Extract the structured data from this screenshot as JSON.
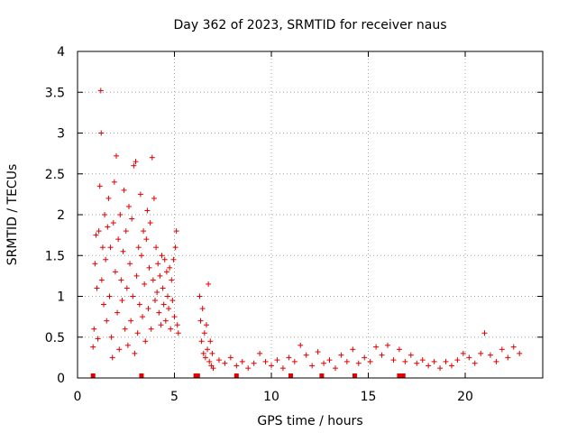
{
  "chart_data": {
    "type": "scatter",
    "title": "Day 362 of 2023, SRMTID for receiver naus",
    "xlabel": "GPS time / hours",
    "ylabel": "SRMTID / TECUs",
    "xlim": [
      0,
      24
    ],
    "ylim": [
      0,
      4
    ],
    "x_ticks": [
      0,
      5,
      10,
      15,
      20
    ],
    "y_ticks": [
      0,
      0.5,
      1,
      1.5,
      2,
      2.5,
      3,
      3.5,
      4
    ],
    "grid": true,
    "marker": "+",
    "color": "#e00000",
    "series": [
      {
        "name": "SRMTID",
        "points": [
          [
            0.8,
            0.38
          ],
          [
            0.85,
            0.6
          ],
          [
            0.9,
            1.4
          ],
          [
            0.95,
            1.75
          ],
          [
            1.0,
            1.1
          ],
          [
            1.05,
            0.48
          ],
          [
            1.1,
            1.8
          ],
          [
            1.15,
            2.35
          ],
          [
            1.2,
            3.52
          ],
          [
            1.22,
            3.0
          ],
          [
            1.25,
            1.2
          ],
          [
            1.3,
            1.6
          ],
          [
            1.35,
            0.9
          ],
          [
            1.4,
            2.0
          ],
          [
            1.45,
            1.45
          ],
          [
            1.5,
            0.7
          ],
          [
            1.55,
            1.85
          ],
          [
            1.6,
            2.2
          ],
          [
            1.65,
            1.0
          ],
          [
            1.7,
            1.6
          ],
          [
            1.75,
            0.5
          ],
          [
            1.8,
            0.25
          ],
          [
            1.85,
            1.9
          ],
          [
            1.9,
            2.4
          ],
          [
            1.95,
            1.3
          ],
          [
            2.0,
            2.72
          ],
          [
            2.05,
            0.8
          ],
          [
            2.1,
            1.7
          ],
          [
            2.15,
            0.35
          ],
          [
            2.2,
            2.0
          ],
          [
            2.25,
            1.2
          ],
          [
            2.3,
            0.95
          ],
          [
            2.35,
            1.55
          ],
          [
            2.4,
            2.3
          ],
          [
            2.45,
            0.6
          ],
          [
            2.5,
            1.8
          ],
          [
            2.55,
            1.1
          ],
          [
            2.6,
            0.4
          ],
          [
            2.65,
            2.1
          ],
          [
            2.7,
            1.4
          ],
          [
            2.75,
            0.7
          ],
          [
            2.8,
            1.95
          ],
          [
            2.85,
            1.0
          ],
          [
            2.9,
            2.6
          ],
          [
            2.95,
            0.3
          ],
          [
            3.0,
            2.65
          ],
          [
            3.05,
            1.25
          ],
          [
            3.1,
            0.55
          ],
          [
            3.15,
            1.6
          ],
          [
            3.2,
            0.9
          ],
          [
            3.25,
            2.25
          ],
          [
            3.3,
            1.5
          ],
          [
            3.35,
            0.75
          ],
          [
            3.4,
            1.8
          ],
          [
            3.45,
            1.15
          ],
          [
            3.5,
            0.45
          ],
          [
            3.55,
            1.7
          ],
          [
            3.6,
            2.05
          ],
          [
            3.65,
            0.85
          ],
          [
            3.7,
            1.35
          ],
          [
            3.75,
            1.9
          ],
          [
            3.8,
            0.6
          ],
          [
            3.85,
            2.7
          ],
          [
            3.9,
            1.2
          ],
          [
            3.95,
            2.2
          ],
          [
            4.0,
            0.95
          ],
          [
            4.05,
            1.6
          ],
          [
            4.1,
            1.05
          ],
          [
            4.15,
            1.4
          ],
          [
            4.2,
            0.8
          ],
          [
            4.25,
            1.25
          ],
          [
            4.3,
            0.65
          ],
          [
            4.35,
            1.5
          ],
          [
            4.4,
            1.1
          ],
          [
            4.45,
            0.9
          ],
          [
            4.5,
            1.45
          ],
          [
            4.55,
            0.7
          ],
          [
            4.6,
            1.3
          ],
          [
            4.65,
            1.0
          ],
          [
            4.7,
            0.85
          ],
          [
            4.75,
            1.35
          ],
          [
            4.8,
            0.6
          ],
          [
            4.85,
            1.2
          ],
          [
            4.9,
            0.95
          ],
          [
            4.95,
            1.45
          ],
          [
            5.0,
            0.75
          ],
          [
            5.05,
            1.6
          ],
          [
            5.1,
            1.8
          ],
          [
            5.15,
            0.65
          ],
          [
            5.2,
            0.55
          ],
          [
            6.3,
            1.0
          ],
          [
            6.35,
            0.7
          ],
          [
            6.4,
            0.45
          ],
          [
            6.45,
            0.85
          ],
          [
            6.5,
            0.3
          ],
          [
            6.55,
            0.55
          ],
          [
            6.6,
            0.25
          ],
          [
            6.65,
            0.65
          ],
          [
            6.7,
            0.35
          ],
          [
            6.75,
            1.15
          ],
          [
            6.8,
            0.2
          ],
          [
            6.85,
            0.45
          ],
          [
            6.9,
            0.15
          ],
          [
            6.95,
            0.3
          ],
          [
            7.0,
            0.12
          ],
          [
            7.3,
            0.22
          ],
          [
            7.6,
            0.18
          ],
          [
            7.9,
            0.25
          ],
          [
            8.2,
            0.15
          ],
          [
            8.5,
            0.2
          ],
          [
            8.8,
            0.12
          ],
          [
            9.1,
            0.18
          ],
          [
            9.4,
            0.3
          ],
          [
            9.7,
            0.2
          ],
          [
            10.0,
            0.15
          ],
          [
            10.3,
            0.22
          ],
          [
            10.6,
            0.12
          ],
          [
            10.9,
            0.25
          ],
          [
            11.2,
            0.2
          ],
          [
            11.5,
            0.4
          ],
          [
            11.8,
            0.28
          ],
          [
            12.1,
            0.15
          ],
          [
            12.4,
            0.32
          ],
          [
            12.7,
            0.18
          ],
          [
            13.0,
            0.22
          ],
          [
            13.3,
            0.12
          ],
          [
            13.6,
            0.28
          ],
          [
            13.9,
            0.2
          ],
          [
            14.2,
            0.35
          ],
          [
            14.5,
            0.18
          ],
          [
            14.8,
            0.25
          ],
          [
            15.1,
            0.2
          ],
          [
            15.4,
            0.38
          ],
          [
            15.7,
            0.28
          ],
          [
            16.0,
            0.4
          ],
          [
            16.3,
            0.22
          ],
          [
            16.6,
            0.35
          ],
          [
            16.9,
            0.2
          ],
          [
            17.2,
            0.28
          ],
          [
            17.5,
            0.18
          ],
          [
            17.8,
            0.22
          ],
          [
            18.1,
            0.15
          ],
          [
            18.4,
            0.2
          ],
          [
            18.7,
            0.12
          ],
          [
            19.0,
            0.2
          ],
          [
            19.3,
            0.15
          ],
          [
            19.6,
            0.22
          ],
          [
            19.9,
            0.3
          ],
          [
            20.2,
            0.25
          ],
          [
            20.5,
            0.18
          ],
          [
            20.8,
            0.3
          ],
          [
            21.0,
            0.55
          ],
          [
            21.3,
            0.28
          ],
          [
            21.6,
            0.2
          ],
          [
            21.9,
            0.35
          ],
          [
            22.2,
            0.25
          ],
          [
            22.5,
            0.38
          ],
          [
            22.8,
            0.3
          ]
        ]
      }
    ],
    "bottom_markers": [
      0.8,
      3.3,
      6.1,
      6.2,
      8.2,
      11.0,
      12.6,
      14.3,
      16.6,
      16.8
    ]
  }
}
